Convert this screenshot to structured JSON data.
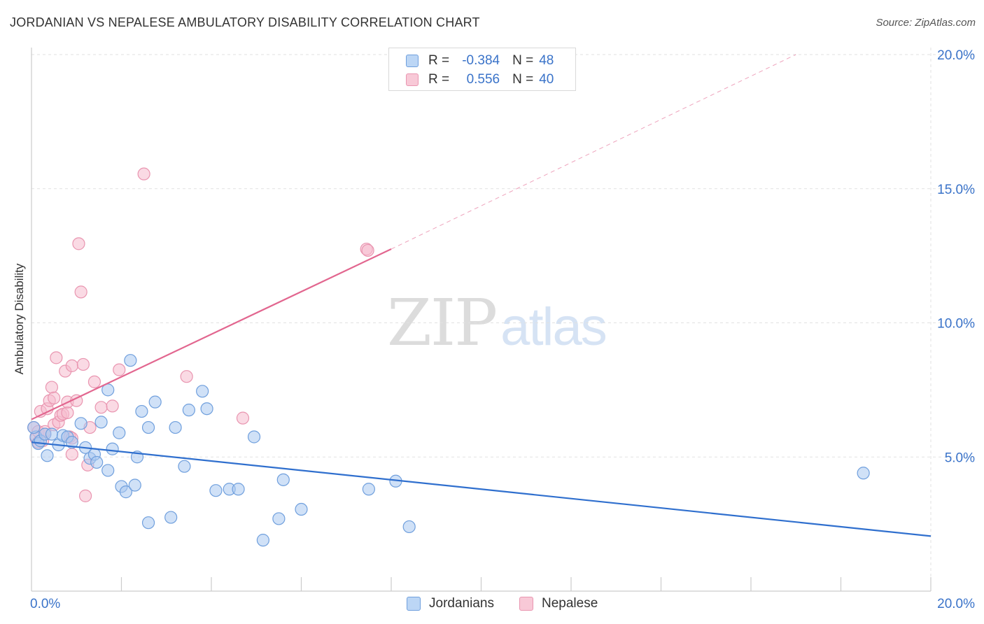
{
  "header": {
    "title": "JORDANIAN VS NEPALESE AMBULATORY DISABILITY CORRELATION CHART",
    "source": "Source: ZipAtlas.com"
  },
  "watermark": {
    "zip": "ZIP",
    "atlas": "atlas"
  },
  "legend": {
    "rows": [
      {
        "r_label": "R =",
        "r_value": "-0.384",
        "n_label": "N =",
        "n_value": "48"
      },
      {
        "r_label": "R =",
        "r_value": "0.556",
        "n_label": "N =",
        "n_value": "40"
      }
    ]
  },
  "colors": {
    "jordanians_fill": "#a9c8f0",
    "jordanians_stroke": "#6f9fdd",
    "jordanians_line": "#2f6fce",
    "nepalese_fill": "#f6bccd",
    "nepalese_stroke": "#e995b0",
    "nepalese_line": "#e2668f",
    "tick_label": "#3a73c9",
    "grid": "#e1e1e1"
  },
  "chart_data": {
    "type": "scatter",
    "title": "JORDANIAN VS NEPALESE AMBULATORY DISABILITY CORRELATION CHART",
    "xlabel": "",
    "ylabel": "Ambulatory Disability",
    "xlim": [
      0,
      20
    ],
    "ylim": [
      0,
      20
    ],
    "x_tick_labels": [
      "0.0%",
      "20.0%"
    ],
    "y_ticks": [
      5,
      10,
      15,
      20
    ],
    "y_tick_labels": [
      "5.0%",
      "10.0%",
      "15.0%",
      "20.0%"
    ],
    "legend_position": "bottom-center",
    "series": [
      {
        "name": "Jordanians",
        "r": -0.384,
        "n": 48,
        "trend": {
          "x": [
            0,
            20
          ],
          "y": [
            5.55,
            2.05
          ],
          "dashed_extension": false
        },
        "points": [
          [
            0.1,
            5.75
          ],
          [
            0.15,
            5.5
          ],
          [
            0.2,
            5.6
          ],
          [
            0.3,
            5.85
          ],
          [
            0.35,
            5.05
          ],
          [
            0.45,
            5.85
          ],
          [
            0.6,
            5.45
          ],
          [
            0.7,
            5.8
          ],
          [
            0.8,
            5.75
          ],
          [
            0.9,
            5.55
          ],
          [
            1.1,
            6.25
          ],
          [
            1.2,
            5.35
          ],
          [
            1.3,
            4.95
          ],
          [
            1.4,
            5.1
          ],
          [
            1.45,
            4.8
          ],
          [
            1.55,
            6.3
          ],
          [
            1.7,
            4.5
          ],
          [
            1.7,
            7.5
          ],
          [
            1.8,
            5.3
          ],
          [
            1.95,
            5.9
          ],
          [
            2.0,
            3.9
          ],
          [
            2.1,
            3.7
          ],
          [
            2.2,
            8.6
          ],
          [
            2.3,
            3.95
          ],
          [
            2.35,
            5.0
          ],
          [
            2.45,
            6.7
          ],
          [
            2.6,
            2.55
          ],
          [
            2.6,
            6.1
          ],
          [
            2.75,
            7.05
          ],
          [
            3.1,
            2.75
          ],
          [
            3.2,
            6.1
          ],
          [
            3.4,
            4.65
          ],
          [
            3.5,
            6.75
          ],
          [
            3.8,
            7.45
          ],
          [
            3.9,
            6.8
          ],
          [
            4.1,
            3.75
          ],
          [
            4.4,
            3.8
          ],
          [
            4.6,
            3.8
          ],
          [
            4.95,
            5.75
          ],
          [
            5.15,
            1.9
          ],
          [
            5.5,
            2.7
          ],
          [
            5.6,
            4.15
          ],
          [
            6.0,
            3.05
          ],
          [
            7.5,
            3.8
          ],
          [
            8.1,
            4.1
          ],
          [
            8.4,
            2.4
          ],
          [
            18.5,
            4.4
          ],
          [
            0.05,
            6.1
          ]
        ]
      },
      {
        "name": "Nepalese",
        "r": 0.556,
        "n": 40,
        "trend": {
          "x": [
            0,
            8
          ],
          "y": [
            6.4,
            12.75
          ],
          "dashed_extension": true,
          "extension_to": [
            17,
            20
          ]
        },
        "points": [
          [
            0.05,
            6.1
          ],
          [
            0.1,
            5.7
          ],
          [
            0.15,
            5.95
          ],
          [
            0.2,
            6.7
          ],
          [
            0.25,
            5.6
          ],
          [
            0.3,
            5.85
          ],
          [
            0.35,
            6.8
          ],
          [
            0.4,
            7.1
          ],
          [
            0.45,
            7.6
          ],
          [
            0.5,
            6.2
          ],
          [
            0.5,
            7.2
          ],
          [
            0.55,
            8.7
          ],
          [
            0.6,
            6.3
          ],
          [
            0.65,
            6.55
          ],
          [
            0.7,
            6.6
          ],
          [
            0.75,
            8.2
          ],
          [
            0.8,
            6.65
          ],
          [
            0.8,
            7.05
          ],
          [
            0.85,
            5.75
          ],
          [
            0.9,
            5.1
          ],
          [
            0.9,
            5.7
          ],
          [
            0.9,
            8.4
          ],
          [
            1.0,
            7.1
          ],
          [
            1.05,
            12.95
          ],
          [
            1.1,
            11.15
          ],
          [
            1.15,
            8.45
          ],
          [
            1.2,
            3.55
          ],
          [
            1.25,
            4.7
          ],
          [
            1.3,
            6.1
          ],
          [
            1.4,
            7.8
          ],
          [
            1.55,
            6.85
          ],
          [
            1.8,
            6.9
          ],
          [
            1.95,
            8.25
          ],
          [
            2.5,
            15.55
          ],
          [
            3.45,
            8.0
          ],
          [
            4.7,
            6.45
          ],
          [
            7.45,
            12.75
          ],
          [
            7.48,
            12.7
          ],
          [
            0.15,
            5.55
          ],
          [
            0.3,
            5.95
          ]
        ]
      }
    ]
  },
  "bottom_legend": {
    "items": [
      "Jordanians",
      "Nepalese"
    ]
  }
}
